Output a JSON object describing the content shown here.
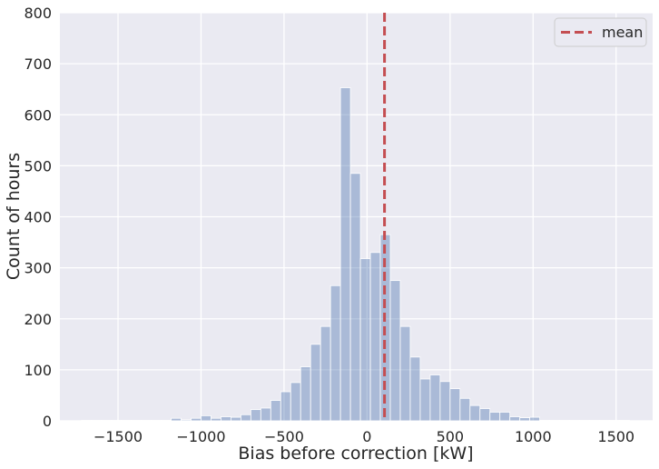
{
  "chart_data": {
    "type": "bar",
    "subtype": "histogram",
    "xlabel": "Bias before correction [kW]",
    "ylabel": "Count of hours",
    "xlim": [
      -1850,
      1720
    ],
    "ylim": [
      0,
      800
    ],
    "xticks": [
      -1500,
      -1000,
      -500,
      0,
      500,
      1000,
      1500
    ],
    "xtick_labels": [
      "−1500",
      "−1000",
      "−500",
      "0",
      "500",
      "1000",
      "1500"
    ],
    "yticks": [
      0,
      100,
      200,
      300,
      400,
      500,
      600,
      700,
      800
    ],
    "grid": true,
    "legend_position": "top-right",
    "bin_width": 60,
    "bin_starts": [
      -1720,
      -1660,
      -1600,
      -1540,
      -1480,
      -1420,
      -1360,
      -1300,
      -1240,
      -1180,
      -1120,
      -1060,
      -1000,
      -940,
      -880,
      -820,
      -760,
      -700,
      -640,
      -580,
      -520,
      -460,
      -400,
      -340,
      -280,
      -220,
      -160,
      -100,
      -40,
      20,
      80,
      140,
      200,
      260,
      320,
      380,
      440,
      500,
      560,
      620,
      680,
      740,
      800,
      860,
      920,
      980,
      1040,
      1100,
      1160,
      1220,
      1280,
      1340,
      1400,
      1460,
      1520
    ],
    "values": [
      1,
      1,
      1,
      1,
      1,
      1,
      1,
      1,
      1,
      5,
      2,
      5,
      10,
      5,
      8,
      7,
      12,
      22,
      25,
      40,
      57,
      75,
      106,
      150,
      185,
      265,
      653,
      485,
      318,
      330,
      365,
      275,
      185,
      125,
      82,
      90,
      77,
      63,
      44,
      30,
      24,
      17,
      17,
      8,
      6,
      7,
      1,
      1,
      1,
      1,
      1,
      1,
      1,
      1,
      1
    ],
    "bar_color": "#4c72b0",
    "bar_opacity": 0.4,
    "mean_line": {
      "x": 105,
      "label": "mean",
      "color": "#c44e52",
      "style": "dashed"
    }
  }
}
